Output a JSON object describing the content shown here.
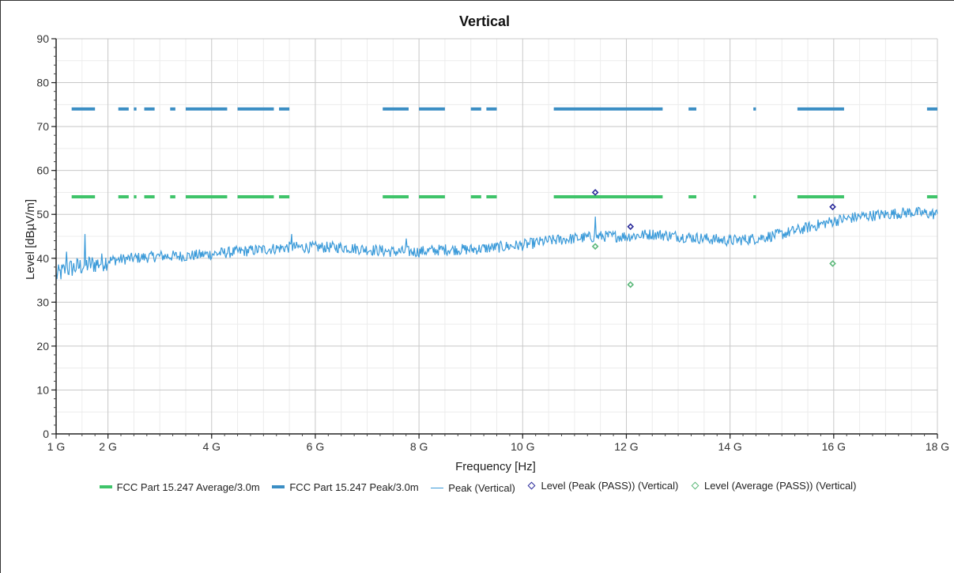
{
  "chart_data": {
    "type": "line",
    "title": "Vertical",
    "xlabel": "Frequency [Hz]",
    "ylabel": "Level [dBµV/m]",
    "xlim": [
      1,
      18
    ],
    "ylim": [
      0,
      90
    ],
    "grid": true,
    "x_ticks": [
      1,
      2,
      4,
      6,
      8,
      10,
      12,
      14,
      16,
      18
    ],
    "x_tick_labels": [
      "1 G",
      "2 G",
      "4 G",
      "6 G",
      "8 G",
      "10 G",
      "12 G",
      "14 G",
      "16 G",
      "18 G"
    ],
    "y_ticks": [
      0,
      10,
      20,
      30,
      40,
      50,
      60,
      70,
      80,
      90
    ],
    "y_tick_labels": [
      "0",
      "10",
      "20",
      "30",
      "40",
      "50",
      "60",
      "70",
      "80",
      "90"
    ],
    "legend_position": "bottom",
    "limit_segments_ghz": [
      [
        1.3,
        1.75
      ],
      [
        2.2,
        2.4
      ],
      [
        2.5,
        2.55
      ],
      [
        2.7,
        2.9
      ],
      [
        3.2,
        3.3
      ],
      [
        3.5,
        4.3
      ],
      [
        4.5,
        5.2
      ],
      [
        5.3,
        5.5
      ],
      [
        7.3,
        7.8
      ],
      [
        8.0,
        8.5
      ],
      [
        9.0,
        9.2
      ],
      [
        9.3,
        9.5
      ],
      [
        10.6,
        12.7
      ],
      [
        13.2,
        13.35
      ],
      [
        14.45,
        14.5
      ],
      [
        15.3,
        16.2
      ],
      [
        17.8,
        18.0
      ]
    ],
    "series": [
      {
        "name": "FCC Part 15.247 Average/3.0m",
        "style": "limit",
        "color": "#3fc46a",
        "y": 54
      },
      {
        "name": "FCC Part 15.247 Peak/3.0m",
        "style": "limit",
        "color": "#3b8ec4",
        "y": 74
      },
      {
        "name": "Peak (Vertical)",
        "style": "trace",
        "color": "#3a9ad9",
        "x": [
          1.0,
          1.2,
          1.4,
          1.6,
          1.8,
          2.0,
          2.5,
          3.0,
          3.5,
          4.0,
          4.5,
          5.0,
          5.5,
          6.0,
          6.5,
          7.0,
          7.5,
          8.0,
          8.5,
          9.0,
          9.5,
          10.0,
          10.5,
          11.0,
          11.5,
          12.0,
          12.5,
          13.0,
          13.5,
          14.0,
          14.5,
          15.0,
          15.5,
          16.0,
          16.5,
          17.0,
          17.5,
          18.0
        ],
        "y": [
          36,
          37.5,
          38,
          38.5,
          38.8,
          39.5,
          40,
          40.5,
          40.5,
          41,
          41.5,
          42,
          42.5,
          42.5,
          42.5,
          42,
          41.5,
          41.5,
          42,
          42,
          42.5,
          43,
          44,
          44.5,
          45,
          45,
          45.5,
          45,
          44.5,
          44,
          44.5,
          45.5,
          47,
          48.5,
          49.5,
          50,
          50.5,
          50
        ],
        "spikes": [
          [
            1.2,
            41.5
          ],
          [
            1.55,
            45.5
          ],
          [
            5.55,
            45.5
          ],
          [
            7.75,
            44.5
          ],
          [
            11.4,
            49.5
          ]
        ]
      },
      {
        "name": "Level (Peak (PASS)) (Vertical)",
        "style": "markers",
        "color": "#2a2a9a",
        "x": [
          11.4,
          12.08,
          15.98
        ],
        "y": [
          55.0,
          47.2,
          51.7
        ]
      },
      {
        "name": "Level (Average (PASS)) (Vertical)",
        "style": "markers",
        "color": "#5cb87a",
        "x": [
          11.4,
          12.08,
          15.98
        ],
        "y": [
          42.7,
          34.0,
          38.8
        ]
      }
    ]
  },
  "legend": {
    "items": [
      {
        "label": "FCC Part 15.247 Average/3.0m",
        "color": "#3fc46a"
      },
      {
        "label": "FCC Part 15.247 Peak/3.0m",
        "color": "#3b8ec4"
      },
      {
        "label": "Peak (Vertical)",
        "color": "#3a9ad9"
      },
      {
        "label": "Level (Peak (PASS)) (Vertical)",
        "color": "#2a2a9a"
      },
      {
        "label": "Level (Average (PASS)) (Vertical)",
        "color": "#5cb87a"
      }
    ]
  }
}
